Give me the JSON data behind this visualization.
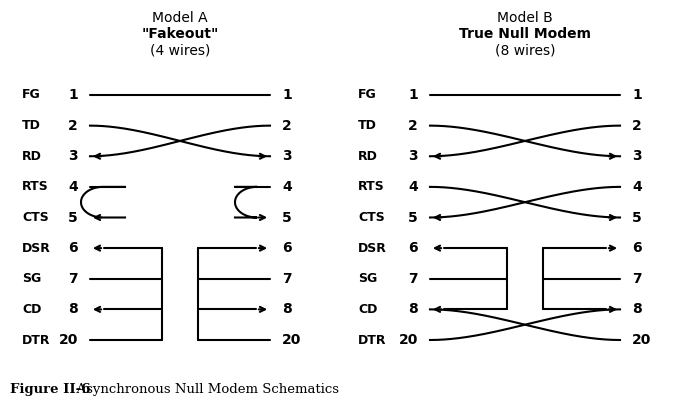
{
  "title_a_line1": "Model A",
  "title_a_line2": "\"Fakeout\"",
  "title_a_line3": "(4 wires)",
  "title_b_line1": "Model B",
  "title_b_line2": "True Null Modem",
  "title_b_line3": "(8 wires)",
  "figure_caption_bold": "Figure II-6",
  "figure_caption_normal": "  Asynchronous Null Modem Schematics",
  "pins": [
    "FG",
    "TD",
    "RD",
    "RTS",
    "CTS",
    "DSR",
    "SG",
    "CD",
    "DTR"
  ],
  "pin_nums": [
    "1",
    "2",
    "3",
    "4",
    "5",
    "6",
    "7",
    "8",
    "20"
  ],
  "lw": 1.5
}
